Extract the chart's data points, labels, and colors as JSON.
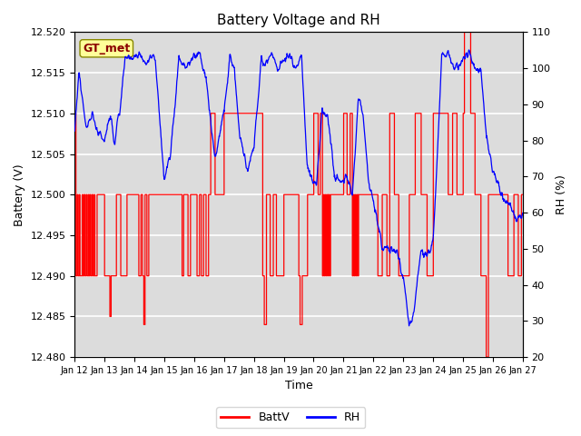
{
  "title": "Battery Voltage and RH",
  "xlabel": "Time",
  "ylabel_left": "Battery (V)",
  "ylabel_right": "RH (%)",
  "ylim_left": [
    12.48,
    12.52
  ],
  "ylim_right": [
    20,
    110
  ],
  "yticks_left": [
    12.48,
    12.485,
    12.49,
    12.495,
    12.5,
    12.505,
    12.51,
    12.515,
    12.52
  ],
  "yticks_right": [
    20,
    30,
    40,
    50,
    60,
    70,
    80,
    90,
    100,
    110
  ],
  "xtick_labels": [
    "Jan 12",
    "Jan 13",
    "Jan 14",
    "Jan 15",
    "Jan 16",
    "Jan 17",
    "Jan 18",
    "Jan 19",
    "Jan 20",
    "Jan 21",
    "Jan 22",
    "Jan 23",
    "Jan 24",
    "Jan 25",
    "Jan 26",
    "Jan 27"
  ],
  "annotation_text": "GT_met",
  "annotation_color": "#8B0000",
  "annotation_bg": "#FFFF99",
  "plot_bg_color": "#DCDCDC",
  "grid_color": "white",
  "batt_color": "red",
  "rh_color": "blue",
  "title_fontsize": 11,
  "axis_fontsize": 9,
  "tick_fontsize": 8,
  "legend_fontsize": 9
}
